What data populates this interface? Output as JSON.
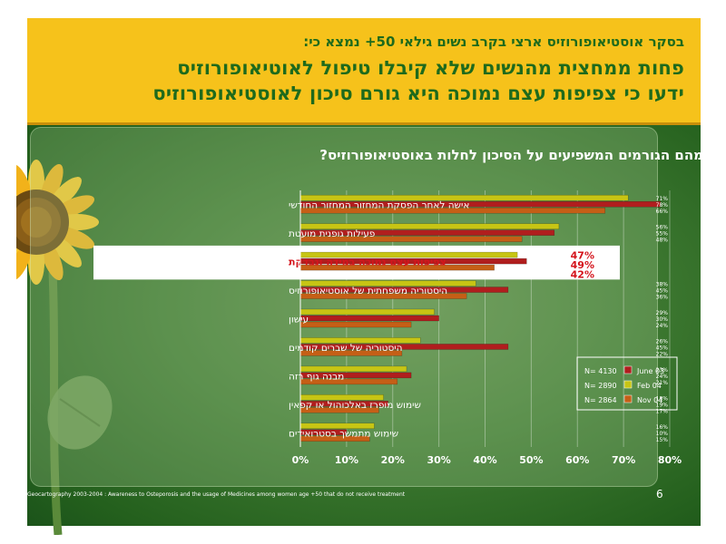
{
  "header": {
    "subtitle": "בסקר אוסטיאופורוזיס ארצי בקרב נשים גילאי 50+ נמצא כי:",
    "title_line1": "פחות ממחצית מהנשים שלא קיבלו טיפול לאוטיאופורוזיס",
    "title_line2": "ידעו כי צפיפות עצם נמוכה היא גורם סיכון לאוסטיאופורוזיס"
  },
  "question": "מהם הגורמים המשפיעים על הסיכון לחלות באוסטיאופורוזיס?",
  "footer": {
    "source": "Geocartography 2003-2004 : Awareness to Osteporosis and the usage of Medicines among women age +50 that do not receive treatment",
    "page_number": "6"
  },
  "colors": {
    "header_bg": "#f6c21b",
    "title_text": "#1e6a1c",
    "series_june03": "#b01e1e",
    "series_feb04": "#c7c514",
    "series_nov04": "#c55f16",
    "highlight_text": "#d4141c"
  },
  "chart_data": {
    "type": "bar",
    "orientation": "horizontal",
    "categories": [
      "אישה לאחר הפסקת המחזור המחזור החודשי",
      "פעילות גופנית מועטת",
      "צפיפות עצם נמוכה  במידה ונבדקת",
      "היסטוריה משפחתית של אוסטיאופורוזיס",
      "עישון",
      "היסטוריה של שברים קודמים",
      "מבנה גוף רזה",
      "שימוש מופרז באלכוהול או קפאין",
      "שימוש מתמשך בסטרואידים"
    ],
    "highlighted_category_index": 2,
    "series": [
      {
        "name": "Feb 04",
        "n": "N= 2890",
        "values": [
          71,
          56,
          47,
          38,
          29,
          26,
          23,
          18,
          16
        ]
      },
      {
        "name": "June 03",
        "n": "N= 4130",
        "values": [
          78,
          55,
          49,
          45,
          30,
          45,
          24,
          19,
          10
        ]
      },
      {
        "name": "Nov 04",
        "n": "N= 2864",
        "values": [
          66,
          48,
          42,
          36,
          24,
          22,
          21,
          17,
          15
        ]
      }
    ],
    "value_labels": [
      [
        "71%",
        "78%",
        "66%"
      ],
      [
        "56%",
        "55%",
        "48%"
      ],
      [
        "47%",
        "49%",
        "42%"
      ],
      [
        "38%",
        "45%",
        "36%"
      ],
      [
        "29%",
        "30%",
        "24%"
      ],
      [
        "26%",
        "45%",
        "22%"
      ],
      [
        "23%",
        "24%",
        "21%"
      ],
      [
        "18%",
        "19%",
        "17%"
      ],
      [
        "16%",
        "10%",
        "15%"
      ]
    ],
    "legend": [
      {
        "n": "N= 4130",
        "label": "June 03"
      },
      {
        "n": "N= 2890",
        "label": "Feb 04"
      },
      {
        "n": "N= 2864",
        "label": "Nov 04"
      }
    ],
    "xlim": [
      0,
      80
    ],
    "xticks": [
      "0%",
      "10%",
      "20%",
      "30%",
      "40%",
      "50%",
      "60%",
      "70%",
      "80%"
    ],
    "legend_position": "bottom-right",
    "grid": true
  }
}
